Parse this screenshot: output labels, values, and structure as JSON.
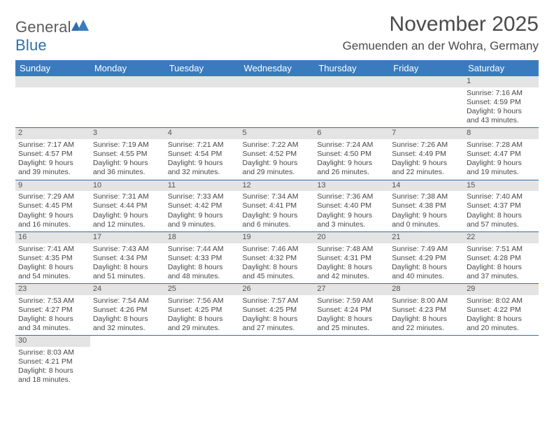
{
  "logo": {
    "word1": "General",
    "word2": "Blue"
  },
  "title": "November 2025",
  "location": "Gemuenden an der Wohra, Germany",
  "colors": {
    "header_bg": "#3a7bbf",
    "header_border": "#2f6fab",
    "daynum_bg": "#e4e4e4",
    "text": "#474747"
  },
  "weekdays": [
    "Sunday",
    "Monday",
    "Tuesday",
    "Wednesday",
    "Thursday",
    "Friday",
    "Saturday"
  ],
  "weeks": [
    [
      null,
      null,
      null,
      null,
      null,
      null,
      {
        "n": "1",
        "sr": "Sunrise: 7:16 AM",
        "ss": "Sunset: 4:59 PM",
        "dl": "Daylight: 9 hours and 43 minutes."
      }
    ],
    [
      {
        "n": "2",
        "sr": "Sunrise: 7:17 AM",
        "ss": "Sunset: 4:57 PM",
        "dl": "Daylight: 9 hours and 39 minutes."
      },
      {
        "n": "3",
        "sr": "Sunrise: 7:19 AM",
        "ss": "Sunset: 4:55 PM",
        "dl": "Daylight: 9 hours and 36 minutes."
      },
      {
        "n": "4",
        "sr": "Sunrise: 7:21 AM",
        "ss": "Sunset: 4:54 PM",
        "dl": "Daylight: 9 hours and 32 minutes."
      },
      {
        "n": "5",
        "sr": "Sunrise: 7:22 AM",
        "ss": "Sunset: 4:52 PM",
        "dl": "Daylight: 9 hours and 29 minutes."
      },
      {
        "n": "6",
        "sr": "Sunrise: 7:24 AM",
        "ss": "Sunset: 4:50 PM",
        "dl": "Daylight: 9 hours and 26 minutes."
      },
      {
        "n": "7",
        "sr": "Sunrise: 7:26 AM",
        "ss": "Sunset: 4:49 PM",
        "dl": "Daylight: 9 hours and 22 minutes."
      },
      {
        "n": "8",
        "sr": "Sunrise: 7:28 AM",
        "ss": "Sunset: 4:47 PM",
        "dl": "Daylight: 9 hours and 19 minutes."
      }
    ],
    [
      {
        "n": "9",
        "sr": "Sunrise: 7:29 AM",
        "ss": "Sunset: 4:45 PM",
        "dl": "Daylight: 9 hours and 16 minutes."
      },
      {
        "n": "10",
        "sr": "Sunrise: 7:31 AM",
        "ss": "Sunset: 4:44 PM",
        "dl": "Daylight: 9 hours and 12 minutes."
      },
      {
        "n": "11",
        "sr": "Sunrise: 7:33 AM",
        "ss": "Sunset: 4:42 PM",
        "dl": "Daylight: 9 hours and 9 minutes."
      },
      {
        "n": "12",
        "sr": "Sunrise: 7:34 AM",
        "ss": "Sunset: 4:41 PM",
        "dl": "Daylight: 9 hours and 6 minutes."
      },
      {
        "n": "13",
        "sr": "Sunrise: 7:36 AM",
        "ss": "Sunset: 4:40 PM",
        "dl": "Daylight: 9 hours and 3 minutes."
      },
      {
        "n": "14",
        "sr": "Sunrise: 7:38 AM",
        "ss": "Sunset: 4:38 PM",
        "dl": "Daylight: 9 hours and 0 minutes."
      },
      {
        "n": "15",
        "sr": "Sunrise: 7:40 AM",
        "ss": "Sunset: 4:37 PM",
        "dl": "Daylight: 8 hours and 57 minutes."
      }
    ],
    [
      {
        "n": "16",
        "sr": "Sunrise: 7:41 AM",
        "ss": "Sunset: 4:35 PM",
        "dl": "Daylight: 8 hours and 54 minutes."
      },
      {
        "n": "17",
        "sr": "Sunrise: 7:43 AM",
        "ss": "Sunset: 4:34 PM",
        "dl": "Daylight: 8 hours and 51 minutes."
      },
      {
        "n": "18",
        "sr": "Sunrise: 7:44 AM",
        "ss": "Sunset: 4:33 PM",
        "dl": "Daylight: 8 hours and 48 minutes."
      },
      {
        "n": "19",
        "sr": "Sunrise: 7:46 AM",
        "ss": "Sunset: 4:32 PM",
        "dl": "Daylight: 8 hours and 45 minutes."
      },
      {
        "n": "20",
        "sr": "Sunrise: 7:48 AM",
        "ss": "Sunset: 4:31 PM",
        "dl": "Daylight: 8 hours and 42 minutes."
      },
      {
        "n": "21",
        "sr": "Sunrise: 7:49 AM",
        "ss": "Sunset: 4:29 PM",
        "dl": "Daylight: 8 hours and 40 minutes."
      },
      {
        "n": "22",
        "sr": "Sunrise: 7:51 AM",
        "ss": "Sunset: 4:28 PM",
        "dl": "Daylight: 8 hours and 37 minutes."
      }
    ],
    [
      {
        "n": "23",
        "sr": "Sunrise: 7:53 AM",
        "ss": "Sunset: 4:27 PM",
        "dl": "Daylight: 8 hours and 34 minutes."
      },
      {
        "n": "24",
        "sr": "Sunrise: 7:54 AM",
        "ss": "Sunset: 4:26 PM",
        "dl": "Daylight: 8 hours and 32 minutes."
      },
      {
        "n": "25",
        "sr": "Sunrise: 7:56 AM",
        "ss": "Sunset: 4:25 PM",
        "dl": "Daylight: 8 hours and 29 minutes."
      },
      {
        "n": "26",
        "sr": "Sunrise: 7:57 AM",
        "ss": "Sunset: 4:25 PM",
        "dl": "Daylight: 8 hours and 27 minutes."
      },
      {
        "n": "27",
        "sr": "Sunrise: 7:59 AM",
        "ss": "Sunset: 4:24 PM",
        "dl": "Daylight: 8 hours and 25 minutes."
      },
      {
        "n": "28",
        "sr": "Sunrise: 8:00 AM",
        "ss": "Sunset: 4:23 PM",
        "dl": "Daylight: 8 hours and 22 minutes."
      },
      {
        "n": "29",
        "sr": "Sunrise: 8:02 AM",
        "ss": "Sunset: 4:22 PM",
        "dl": "Daylight: 8 hours and 20 minutes."
      }
    ],
    [
      {
        "n": "30",
        "sr": "Sunrise: 8:03 AM",
        "ss": "Sunset: 4:21 PM",
        "dl": "Daylight: 8 hours and 18 minutes."
      },
      null,
      null,
      null,
      null,
      null,
      null
    ]
  ]
}
